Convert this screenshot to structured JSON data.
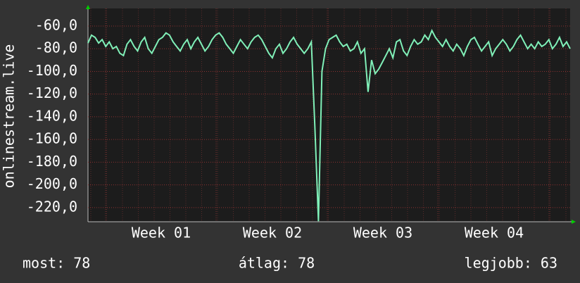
{
  "chart_data": {
    "type": "line",
    "y_label": "onlinestream.live",
    "xtick_labels": [
      "Week 01",
      "Week 02",
      "Week 03",
      "Week 04"
    ],
    "series": [
      {
        "color": "#80f0b8",
        "values": [
          -75,
          -68,
          -70,
          -75,
          -72,
          -78,
          -74,
          -80,
          -78,
          -84,
          -86,
          -76,
          -72,
          -78,
          -82,
          -74,
          -70,
          -80,
          -84,
          -78,
          -72,
          -70,
          -66,
          -68,
          -74,
          -78,
          -82,
          -76,
          -72,
          -80,
          -74,
          -70,
          -76,
          -82,
          -78,
          -72,
          -68,
          -66,
          -70,
          -76,
          -80,
          -84,
          -78,
          -72,
          -76,
          -80,
          -74,
          -70,
          -68,
          -72,
          -78,
          -84,
          -88,
          -80,
          -76,
          -84,
          -80,
          -74,
          -70,
          -76,
          -80,
          -84,
          -80,
          -74,
          -150,
          -232,
          -100,
          -80,
          -72,
          -70,
          -68,
          -74,
          -78,
          -76,
          -82,
          -80,
          -74,
          -84,
          -80,
          -118,
          -90,
          -102,
          -98,
          -92,
          -86,
          -80,
          -88,
          -74,
          -72,
          -82,
          -86,
          -78,
          -72,
          -76,
          -74,
          -68,
          -72,
          -64,
          -70,
          -74,
          -78,
          -72,
          -78,
          -82,
          -76,
          -80,
          -86,
          -78,
          -72,
          -70,
          -76,
          -82,
          -78,
          -74,
          -86,
          -80,
          -76,
          -72,
          -76,
          -82,
          -78,
          -72,
          -68,
          -74,
          -80,
          -76,
          -80,
          -74,
          -78,
          -76,
          -72,
          -80,
          -76,
          -70,
          -78,
          -74,
          -80
        ]
      }
    ],
    "ylim": [
      -232.5,
      -44.5
    ],
    "yticks": [
      {
        "value": -60,
        "label": "-60,0"
      },
      {
        "value": -80,
        "label": "-80,0"
      },
      {
        "value": -100,
        "label": "-100,0"
      },
      {
        "value": -120,
        "label": "-120,0"
      },
      {
        "value": -140,
        "label": "-140,0"
      },
      {
        "value": -160,
        "label": "-160,0"
      },
      {
        "value": -180,
        "label": "-180,0"
      },
      {
        "value": -200,
        "label": "-200,0"
      },
      {
        "value": -220,
        "label": "-220,0"
      }
    ],
    "grid": true,
    "footer": [
      "most: 78",
      "átlag: 78",
      "legjobb: 63"
    ]
  }
}
